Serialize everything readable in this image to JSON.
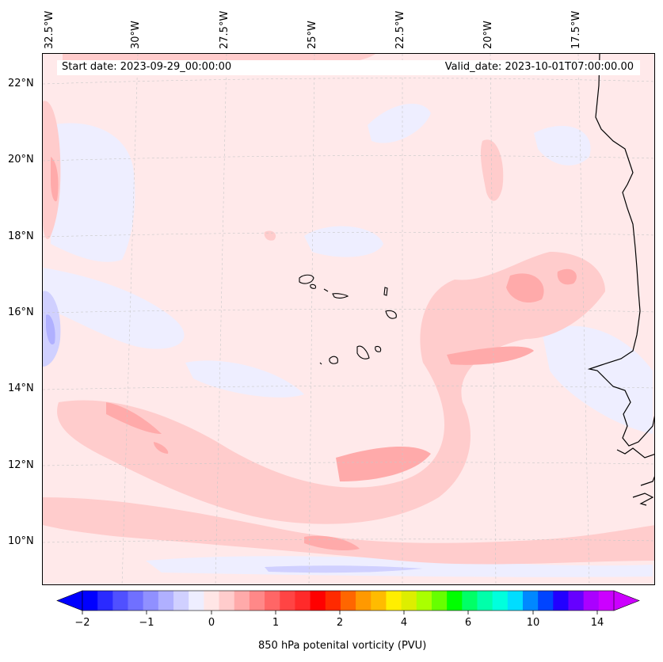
{
  "map": {
    "start_date": "Start date: 2023-09-29_00:00:00",
    "valid_date": "Valid_date: 2023-10-01T07:00:00.00",
    "lat_labels": [
      "22°N",
      "20°N",
      "18°N",
      "16°N",
      "14°N",
      "12°N",
      "10°N"
    ],
    "lon_labels": [
      "32.5°W",
      "30°W",
      "27.5°W",
      "25°W",
      "22.5°W",
      "20°W",
      "17.5°W"
    ],
    "background_color": "#ffe9ea"
  },
  "colorbar": {
    "title": "850 hPa potenital vorticity (PVU)",
    "tick_labels": [
      "−2",
      "−1",
      "0",
      "1",
      "2",
      "4",
      "6",
      "10",
      "14"
    ],
    "colors": [
      "#0000ff",
      "#2a2aff",
      "#5050ff",
      "#7070ff",
      "#9090ff",
      "#b0b0ff",
      "#d0d0ff",
      "#eeeeff",
      "#ffe6e6",
      "#ffcccc",
      "#ffaaaa",
      "#ff8888",
      "#ff6666",
      "#ff4444",
      "#ff2a2a",
      "#ff0000",
      "#ff2a00",
      "#ff6600",
      "#ff9900",
      "#ffbb00",
      "#ffee00",
      "#ddee00",
      "#aaff00",
      "#66ff00",
      "#00ff00",
      "#00ff66",
      "#00ffaa",
      "#00ffdd",
      "#00ddff",
      "#0088ff",
      "#0044ff",
      "#2200ff",
      "#6600ff",
      "#aa00ff",
      "#cc00ff"
    ],
    "extend_low_color": "#0000ff",
    "extend_high_color": "#cc00ff"
  }
}
